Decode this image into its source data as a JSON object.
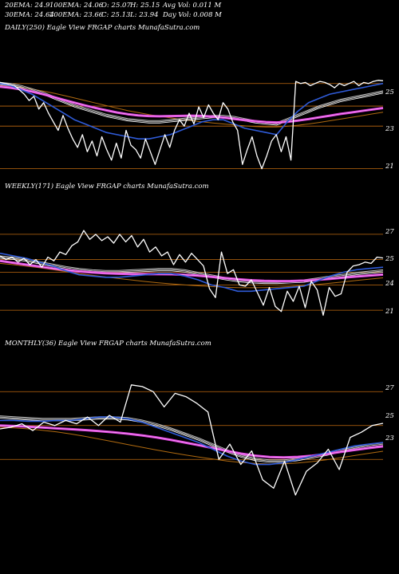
{
  "header": {
    "row1": [
      "20EMA: 24.9",
      "100EMA: 24.06",
      "O: 25.07",
      "H: 25.15",
      "Avg Vol: 0.011 M"
    ],
    "row2": [
      "30EMA: 24.64",
      "200EMA: 23.66",
      "C: 25.13",
      "L: 23.94",
      "Day Vol: 0.008 M"
    ]
  },
  "panels": [
    {
      "label": "DAILY(250) Eagle  View  FRGAP charts MunafaSutra.com",
      "ticks": [
        "25",
        "23",
        "21"
      ]
    },
    {
      "label": "WEEKLY(171) Eagle  View  FRGAP charts MunafaSutra.com",
      "ticks": [
        "27",
        "25",
        "24",
        "21"
      ]
    },
    {
      "label": "MONTHLY(36) Eagle  View  FRGAP charts MunafaSutra.com",
      "ticks": [
        "27",
        "25",
        "23"
      ]
    }
  ],
  "colors": {
    "background": "#000000",
    "price": "#ffffff",
    "ema_fast": "#2f5bd8",
    "ema_mid": "#bbbbbb",
    "ema_200": "#e040e0",
    "ema_slow": "#b06a10",
    "grid": "#c06a10"
  },
  "chart_data": [
    {
      "type": "line",
      "title": "DAILY(250) Eagle  View  FRGAP charts MunafaSutra.com",
      "ylim": [
        20.5,
        26
      ],
      "grid_levels": [
        25,
        23.94,
        23,
        21
      ],
      "price": [
        25.05,
        25.0,
        24.95,
        24.9,
        24.7,
        24.5,
        24.2,
        24.4,
        23.8,
        24.1,
        23.6,
        23.2,
        22.8,
        23.5,
        22.9,
        22.4,
        22.0,
        22.6,
        21.8,
        22.3,
        21.6,
        22.5,
        21.9,
        21.4,
        22.2,
        21.5,
        22.8,
        22.1,
        21.9,
        21.5,
        22.4,
        21.8,
        21.2,
        21.9,
        22.6,
        22.0,
        22.8,
        23.3,
        23.0,
        23.6,
        23.1,
        23.9,
        23.4,
        24.0,
        23.6,
        23.3,
        24.1,
        23.8,
        23.2,
        22.8,
        21.2,
        21.9,
        22.5,
        21.6,
        21.0,
        21.6,
        22.3,
        22.6,
        21.8,
        22.5,
        21.4,
        25.1,
        25.0,
        25.05,
        24.9,
        25.0,
        25.1,
        25.05,
        24.95,
        24.8,
        25.0,
        24.9,
        25.0,
        25.1,
        24.9,
        25.05,
        25.0,
        25.1,
        25.15,
        25.13
      ],
      "ema_fast": [
        25.0,
        24.9,
        24.7,
        24.5,
        24.2,
        23.9,
        23.6,
        23.3,
        23.1,
        22.9,
        22.7,
        22.6,
        22.5,
        22.4,
        22.4,
        22.5,
        22.6,
        22.8,
        23.0,
        23.2,
        23.3,
        23.3,
        23.1,
        22.9,
        22.8,
        22.7,
        22.6,
        23.2,
        23.7,
        24.1,
        24.3,
        24.5,
        24.6,
        24.7,
        24.8,
        24.9,
        25.0
      ],
      "ema_mid": [
        25.0,
        24.95,
        24.85,
        24.7,
        24.55,
        24.35,
        24.15,
        23.95,
        23.8,
        23.65,
        23.5,
        23.4,
        23.3,
        23.25,
        23.2,
        23.2,
        23.25,
        23.3,
        23.35,
        23.4,
        23.45,
        23.45,
        23.4,
        23.3,
        23.2,
        23.15,
        23.1,
        23.3,
        23.5,
        23.7,
        23.9,
        24.05,
        24.2,
        24.3,
        24.4,
        24.5,
        24.6
      ],
      "ema_200": [
        24.85,
        24.8,
        24.72,
        24.62,
        24.5,
        24.37,
        24.23,
        24.1,
        23.97,
        23.85,
        23.74,
        23.64,
        23.56,
        23.5,
        23.47,
        23.46,
        23.47,
        23.48,
        23.49,
        23.48,
        23.45,
        23.4,
        23.34,
        23.28,
        23.23,
        23.19,
        23.17,
        23.2,
        23.26,
        23.33,
        23.41,
        23.49,
        23.57,
        23.64,
        23.71,
        23.78,
        23.85
      ],
      "ema_slow": [
        24.9,
        24.87,
        24.82,
        24.74,
        24.65,
        24.55,
        24.44,
        24.32,
        24.2,
        24.08,
        23.96,
        23.84,
        23.73,
        23.63,
        23.54,
        23.46,
        23.39,
        23.32,
        23.26,
        23.2,
        23.15,
        23.1,
        23.05,
        23.01,
        22.98,
        22.96,
        22.96,
        22.99,
        23.04,
        23.1,
        23.17,
        23.25,
        23.33,
        23.41,
        23.49,
        23.57,
        23.65
      ]
    },
    {
      "type": "line",
      "title": "WEEKLY(171) Eagle  View  FRGAP charts MunafaSutra.com",
      "ylim": [
        20,
        28
      ],
      "grid_levels": [
        27,
        25,
        24,
        23,
        21
      ],
      "price": [
        25.3,
        25.0,
        25.2,
        24.8,
        25.1,
        24.6,
        25.0,
        24.4,
        25.2,
        24.9,
        25.6,
        25.4,
        26.1,
        26.4,
        27.3,
        26.6,
        27.0,
        26.5,
        26.8,
        26.3,
        27.0,
        26.4,
        26.9,
        26.0,
        26.6,
        25.6,
        26.0,
        25.3,
        25.6,
        24.6,
        25.4,
        24.8,
        25.5,
        25.0,
        24.5,
        22.7,
        22.0,
        25.6,
        23.9,
        24.2,
        23.0,
        22.9,
        23.4,
        22.4,
        21.4,
        22.8,
        21.3,
        20.9,
        22.5,
        21.7,
        22.9,
        21.2,
        23.3,
        22.6,
        20.6,
        22.8,
        22.1,
        22.3,
        24.0,
        24.5,
        24.6,
        24.8,
        24.7,
        25.2,
        25.13
      ],
      "ema_fast": [
        25.5,
        25.3,
        25.1,
        24.8,
        24.5,
        24.1,
        23.8,
        23.7,
        23.6,
        23.6,
        23.7,
        23.8,
        23.9,
        23.9,
        23.7,
        23.4,
        23.0,
        22.8,
        22.5,
        22.5,
        22.6,
        22.7,
        22.8,
        22.9,
        23.3,
        23.7,
        24.0,
        24.2,
        24.3,
        24.4
      ],
      "ema_mid": [
        25.2,
        25.1,
        24.95,
        24.75,
        24.55,
        24.35,
        24.2,
        24.1,
        24.05,
        24.05,
        24.1,
        24.15,
        24.2,
        24.2,
        24.1,
        23.9,
        23.7,
        23.5,
        23.35,
        23.25,
        23.2,
        23.2,
        23.25,
        23.3,
        23.45,
        23.6,
        23.75,
        23.9,
        24.0,
        24.1
      ],
      "ema_200": [
        24.9,
        24.75,
        24.6,
        24.45,
        24.3,
        24.17,
        24.06,
        23.98,
        23.92,
        23.88,
        23.86,
        23.85,
        23.85,
        23.84,
        23.8,
        23.73,
        23.64,
        23.54,
        23.45,
        23.37,
        23.32,
        23.3,
        23.31,
        23.34,
        23.4,
        23.48,
        23.57,
        23.66,
        23.74,
        23.82
      ],
      "ema_slow": [
        24.7,
        24.6,
        24.48,
        24.35,
        24.2,
        24.05,
        23.9,
        23.76,
        23.63,
        23.5,
        23.38,
        23.27,
        23.17,
        23.08,
        23.0,
        22.93,
        22.87,
        22.82,
        22.79,
        22.78,
        22.79,
        22.82,
        22.87,
        22.94,
        23.03,
        23.13,
        23.24,
        23.35,
        23.46,
        23.56
      ]
    },
    {
      "type": "line",
      "title": "MONTHLY(36) Eagle  View  FRGAP charts MunafaSutra.com",
      "ylim": [
        20,
        28
      ],
      "grid_levels": [
        27,
        25,
        23
      ],
      "price": [
        24.8,
        24.9,
        25.1,
        24.7,
        25.2,
        25.0,
        25.3,
        25.1,
        25.5,
        25.0,
        25.6,
        25.2,
        27.4,
        27.3,
        27.0,
        26.1,
        26.9,
        26.7,
        26.3,
        25.8,
        23.0,
        23.9,
        22.7,
        23.5,
        21.8,
        21.3,
        22.9,
        20.9,
        22.3,
        22.8,
        23.6,
        22.4,
        24.3,
        24.6,
        25.0,
        25.13
      ],
      "ema_fast": [
        25.3,
        25.3,
        25.25,
        25.25,
        25.3,
        25.3,
        25.4,
        25.5,
        25.5,
        25.4,
        25.2,
        24.9,
        24.6,
        24.3,
        24.0,
        23.6,
        23.2,
        22.9,
        22.7,
        22.7,
        22.8,
        23.0,
        23.2,
        23.4,
        23.6,
        23.8,
        23.9,
        24.0
      ],
      "ema_mid": [
        25.5,
        25.45,
        25.4,
        25.35,
        25.35,
        25.35,
        25.4,
        25.45,
        25.45,
        25.4,
        25.25,
        25.05,
        24.8,
        24.5,
        24.2,
        23.85,
        23.5,
        23.2,
        23.0,
        22.9,
        22.9,
        23.0,
        23.15,
        23.3,
        23.5,
        23.65,
        23.8,
        23.9
      ],
      "ema_200": [
        25.0,
        24.97,
        24.93,
        24.88,
        24.83,
        24.78,
        24.73,
        24.67,
        24.6,
        24.52,
        24.42,
        24.3,
        24.16,
        24.0,
        23.84,
        23.67,
        23.5,
        23.34,
        23.22,
        23.14,
        23.12,
        23.15,
        23.22,
        23.32,
        23.44,
        23.56,
        23.67,
        23.77
      ],
      "ema_slow": [
        24.9,
        24.86,
        24.8,
        24.72,
        24.62,
        24.5,
        24.36,
        24.2,
        24.04,
        23.88,
        23.72,
        23.56,
        23.41,
        23.27,
        23.14,
        23.02,
        22.91,
        22.82,
        22.76,
        22.73,
        22.74,
        22.79,
        22.87,
        22.98,
        23.1,
        23.23,
        23.36,
        23.48
      ]
    }
  ]
}
